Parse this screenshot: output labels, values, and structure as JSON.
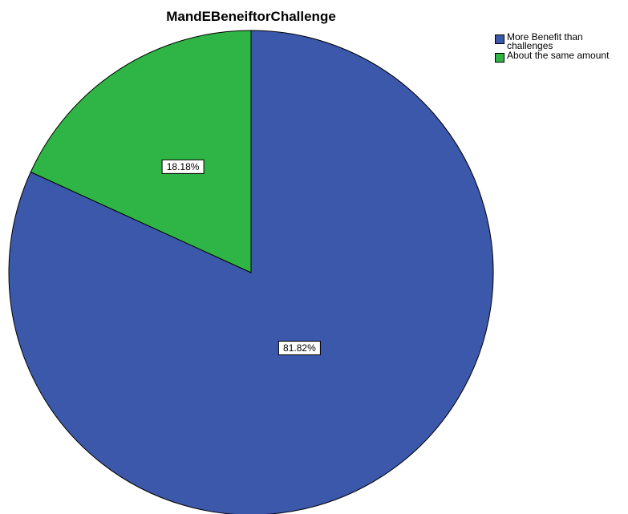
{
  "chart_data": {
    "type": "pie",
    "title": "MandEBeneiftorChallenge",
    "legend_position": "top-right",
    "slices": [
      {
        "name": "More Benefit than challenges",
        "value": 81.82,
        "label": "81.82%",
        "color": "#3c58ab"
      },
      {
        "name": "About the same amount",
        "value": 18.18,
        "label": "18.18%",
        "color": "#2fb545"
      }
    ]
  }
}
